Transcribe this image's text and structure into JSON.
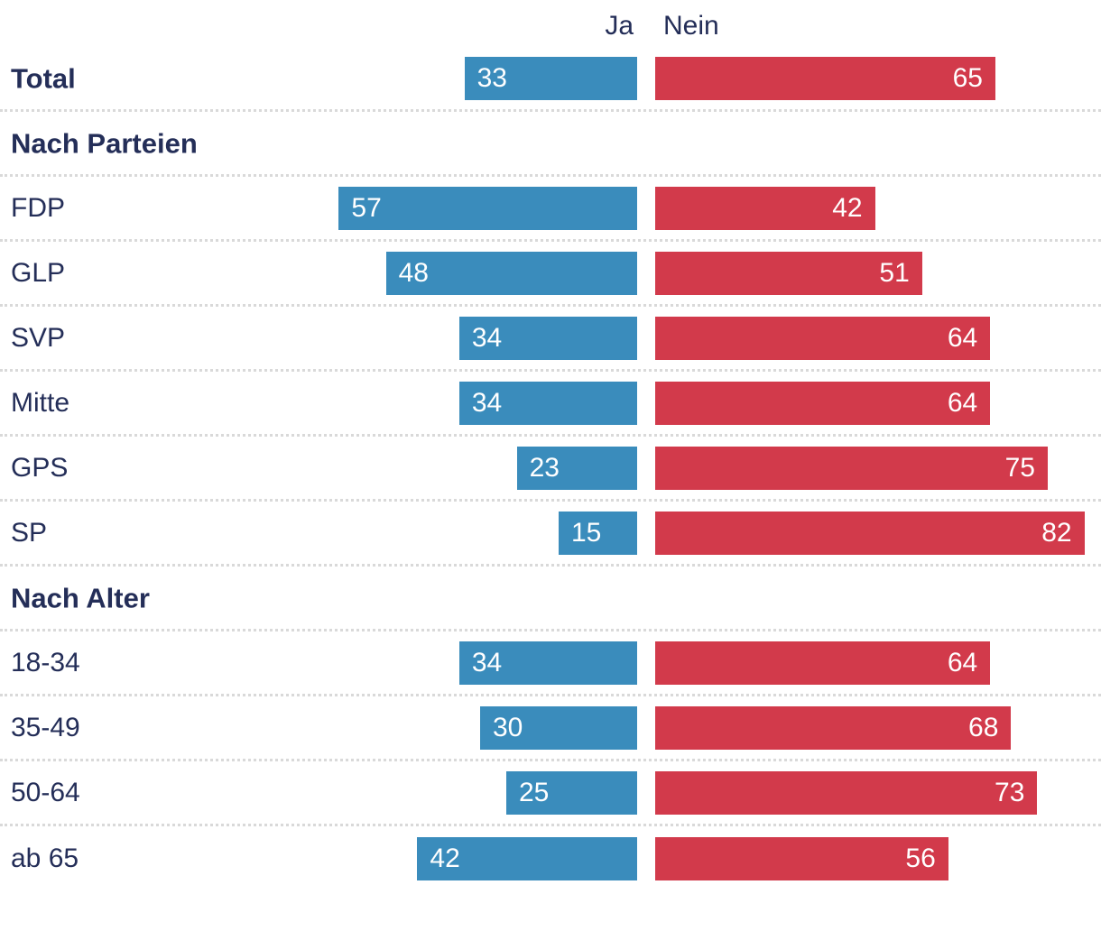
{
  "header": {
    "ja_label": "Ja",
    "nein_label": "Nein"
  },
  "colors": {
    "ja": "#3a8cbc",
    "nein": "#d23a4b",
    "text": "#242e58",
    "separator": "#d9d9d9",
    "value_text": "#ffffff"
  },
  "chart_data": {
    "type": "bar",
    "orientation": "horizontal",
    "unit": "percent",
    "axis_max": 100,
    "legend": [
      "Ja",
      "Nein"
    ],
    "legend_position": "top",
    "grid": "dotted-row-separators",
    "sections": [
      {
        "title": "",
        "rows": [
          {
            "label": "Total",
            "emphasis": true,
            "ja": 33,
            "nein": 65
          }
        ]
      },
      {
        "title": "Nach Parteien",
        "rows": [
          {
            "label": "FDP",
            "emphasis": false,
            "ja": 57,
            "nein": 42
          },
          {
            "label": "GLP",
            "emphasis": false,
            "ja": 48,
            "nein": 51
          },
          {
            "label": "SVP",
            "emphasis": false,
            "ja": 34,
            "nein": 64
          },
          {
            "label": "Mitte",
            "emphasis": false,
            "ja": 34,
            "nein": 64
          },
          {
            "label": "GPS",
            "emphasis": false,
            "ja": 23,
            "nein": 75
          },
          {
            "label": "SP",
            "emphasis": false,
            "ja": 15,
            "nein": 82
          }
        ]
      },
      {
        "title": "Nach Alter",
        "rows": [
          {
            "label": "18-34",
            "emphasis": false,
            "ja": 34,
            "nein": 64
          },
          {
            "label": "35-49",
            "emphasis": false,
            "ja": 30,
            "nein": 68
          },
          {
            "label": "50-64",
            "emphasis": false,
            "ja": 25,
            "nein": 73
          },
          {
            "label": "ab 65",
            "emphasis": false,
            "ja": 42,
            "nein": 56
          }
        ]
      }
    ]
  }
}
